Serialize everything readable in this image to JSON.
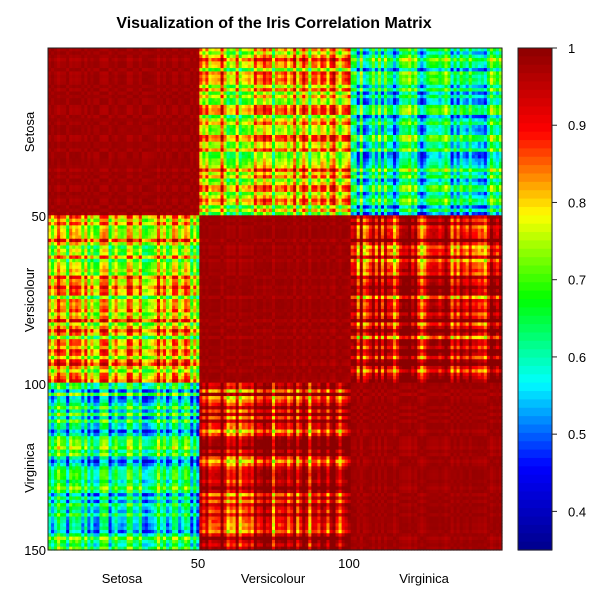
{
  "chart_data": {
    "type": "heatmap",
    "title": "Visualization of the Iris Correlation Matrix",
    "n": 150,
    "groups": [
      "Setosa",
      "Versicolour",
      "Virginica"
    ],
    "group_size": 50,
    "x_ticks": [
      "50",
      "100"
    ],
    "y_ticks": [
      "50",
      "100",
      "150"
    ],
    "block_correlation": [
      [
        0.99,
        0.78,
        0.6
      ],
      [
        0.78,
        0.99,
        0.93
      ],
      [
        0.6,
        0.93,
        0.99
      ]
    ],
    "value_range": [
      0.35,
      1.0
    ],
    "colorbar": {
      "ticks": [
        "1",
        "0.9",
        "0.8",
        "0.7",
        "0.6",
        "0.5",
        "0.4"
      ],
      "tick_values": [
        1,
        0.9,
        0.8,
        0.7,
        0.6,
        0.5,
        0.4
      ]
    },
    "colormap": [
      "#00008b",
      "#0000ff",
      "#00ffff",
      "#00ff00",
      "#ffff00",
      "#ff0000",
      "#8b0000"
    ],
    "legend_placement": "right",
    "grid": false
  }
}
